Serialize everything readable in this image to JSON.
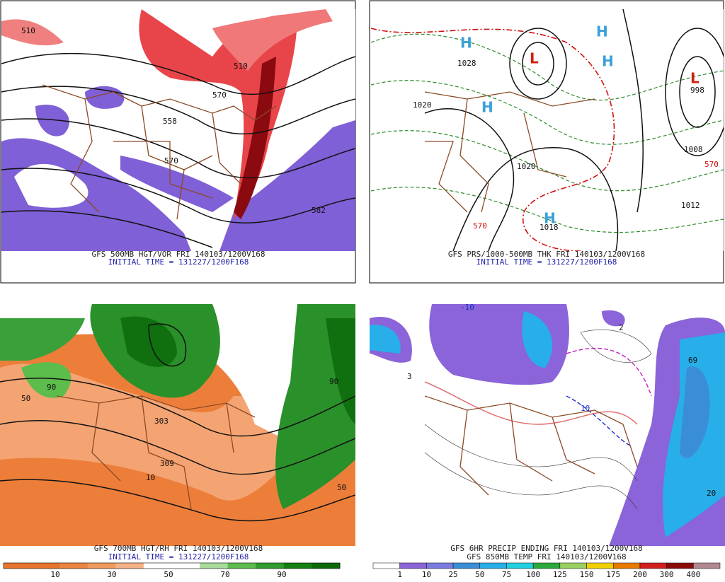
{
  "panels": [
    {
      "caption": "GFS 500MB HGT/VOR FRI 140103/1200V168",
      "initial_time": "INITIAL TIME = 131227/1200F168",
      "labels": [
        "510",
        "510",
        "570",
        "582",
        "558",
        "570"
      ]
    },
    {
      "caption": "GFS PRS/1000-500MB THK FRI 140103/1200V168",
      "initial_time": "INITIAL TIME = 131227/1200F168",
      "labels": [
        "H",
        "L",
        "H",
        "H",
        "L",
        "H",
        "H",
        "1028",
        "1020",
        "1008",
        "1012",
        "1018",
        "1020",
        "570",
        "570",
        "998"
      ]
    },
    {
      "caption": "GFS 700MB HGT/RH FRI 140103/1200V168",
      "initial_time": "INITIAL TIME = 131227/1200F168",
      "labels": [
        "50",
        "90",
        "309",
        "10",
        "303",
        "50",
        "90"
      ],
      "colorbar": {
        "labels": [
          10,
          30,
          50,
          70,
          90
        ],
        "colors": [
          "#e8742c",
          "#e8742c",
          "#ec8442",
          "#f09a5c",
          "#f4b286",
          "#ffffff",
          "#ffffff",
          "#a8dc9c",
          "#5cbc4c",
          "#2e9c2e",
          "#128012",
          "#0a6a0a"
        ]
      }
    },
    {
      "caption": "GFS 6HR PRECIP ENDING FRI 140103/1200V168",
      "caption2": "GFS 850MB TEMP FRI 140103/1200V168",
      "labels": [
        "3",
        "2",
        "69",
        "20",
        "-10",
        "10"
      ],
      "colorbar": {
        "labels": [
          1,
          10,
          25,
          50,
          75,
          100,
          125,
          150,
          175,
          200,
          300,
          400
        ],
        "colors": [
          "#ffffff",
          "#8a64d8",
          "#7a7ae0",
          "#3a8ed8",
          "#28aee8",
          "#20d0e0",
          "#2aa83a",
          "#9ad060",
          "#f0d000",
          "#e87a00",
          "#d0201e",
          "#8a0a0a",
          "#b08890"
        ]
      }
    }
  ]
}
